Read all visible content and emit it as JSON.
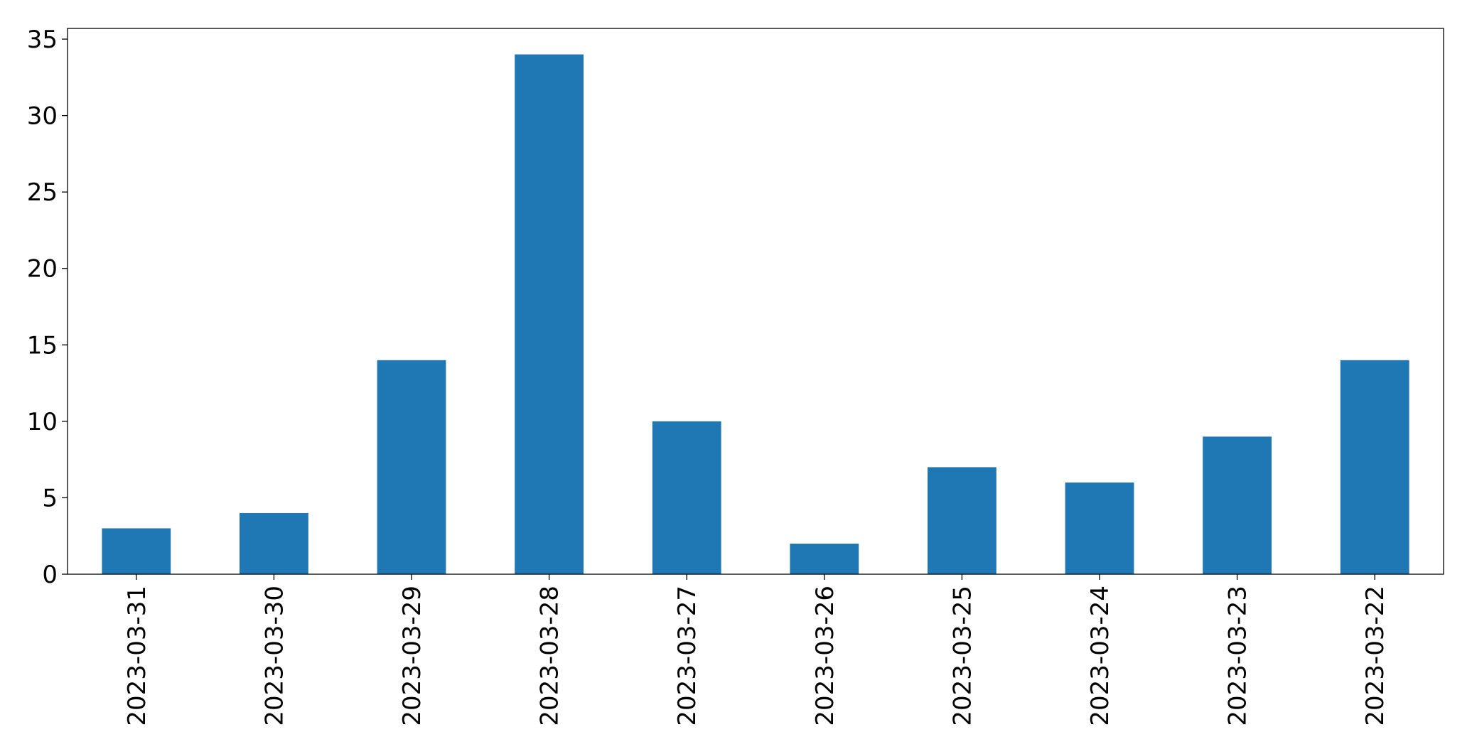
{
  "chart_data": {
    "type": "bar",
    "categories": [
      "2023-03-31",
      "2023-03-30",
      "2023-03-29",
      "2023-03-28",
      "2023-03-27",
      "2023-03-26",
      "2023-03-25",
      "2023-03-24",
      "2023-03-23",
      "2023-03-22"
    ],
    "values": [
      3,
      4,
      14,
      34,
      10,
      2,
      7,
      6,
      9,
      14
    ],
    "color": "#1f77b4",
    "ylim": [
      0,
      35.7
    ],
    "yticks": [
      0,
      5,
      10,
      15,
      20,
      25,
      30,
      35
    ],
    "grid": false
  }
}
